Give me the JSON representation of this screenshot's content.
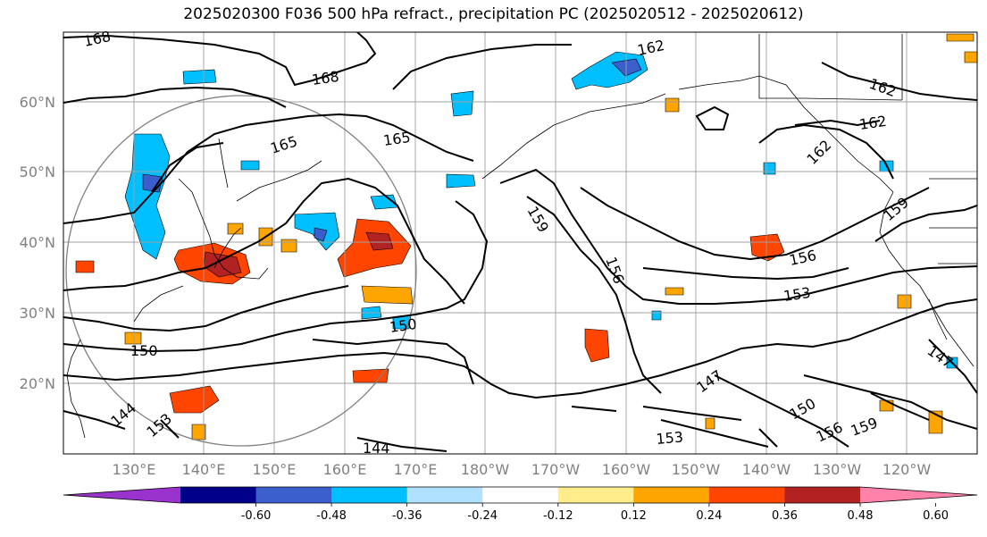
{
  "title": "2025020300 F036 500 hPa refract., precipitation PC (2025020512 - 2025020612)",
  "lat_labels": [
    "60°N",
    "50°N",
    "40°N",
    "30°N",
    "20°N"
  ],
  "lon_labels": [
    "130°E",
    "140°E",
    "150°E",
    "160°E",
    "170°E",
    "180°W",
    "170°W",
    "160°W",
    "150°W",
    "140°W",
    "130°W",
    "120°W"
  ],
  "colorbar": {
    "colors": [
      "#9a32cd",
      "#00008b",
      "#3a5fcd",
      "#00bfff",
      "#b0e2ff",
      "#ffffff",
      "#ffec8b",
      "#ffa500",
      "#ff4500",
      "#b22222",
      "#ff82ab"
    ],
    "tick_labels": [
      "-0.60",
      "-0.48",
      "-0.36",
      "-0.24",
      "-0.12",
      "0.12",
      "0.24",
      "0.36",
      "0.48",
      "0.60"
    ]
  },
  "contour_labels": [
    "168",
    "168",
    "165",
    "165",
    "162",
    "162",
    "162",
    "162",
    "159",
    "159",
    "159",
    "156",
    "156",
    "156",
    "153",
    "153",
    "150",
    "150",
    "150",
    "147",
    "147",
    "144",
    "144",
    "153"
  ]
}
